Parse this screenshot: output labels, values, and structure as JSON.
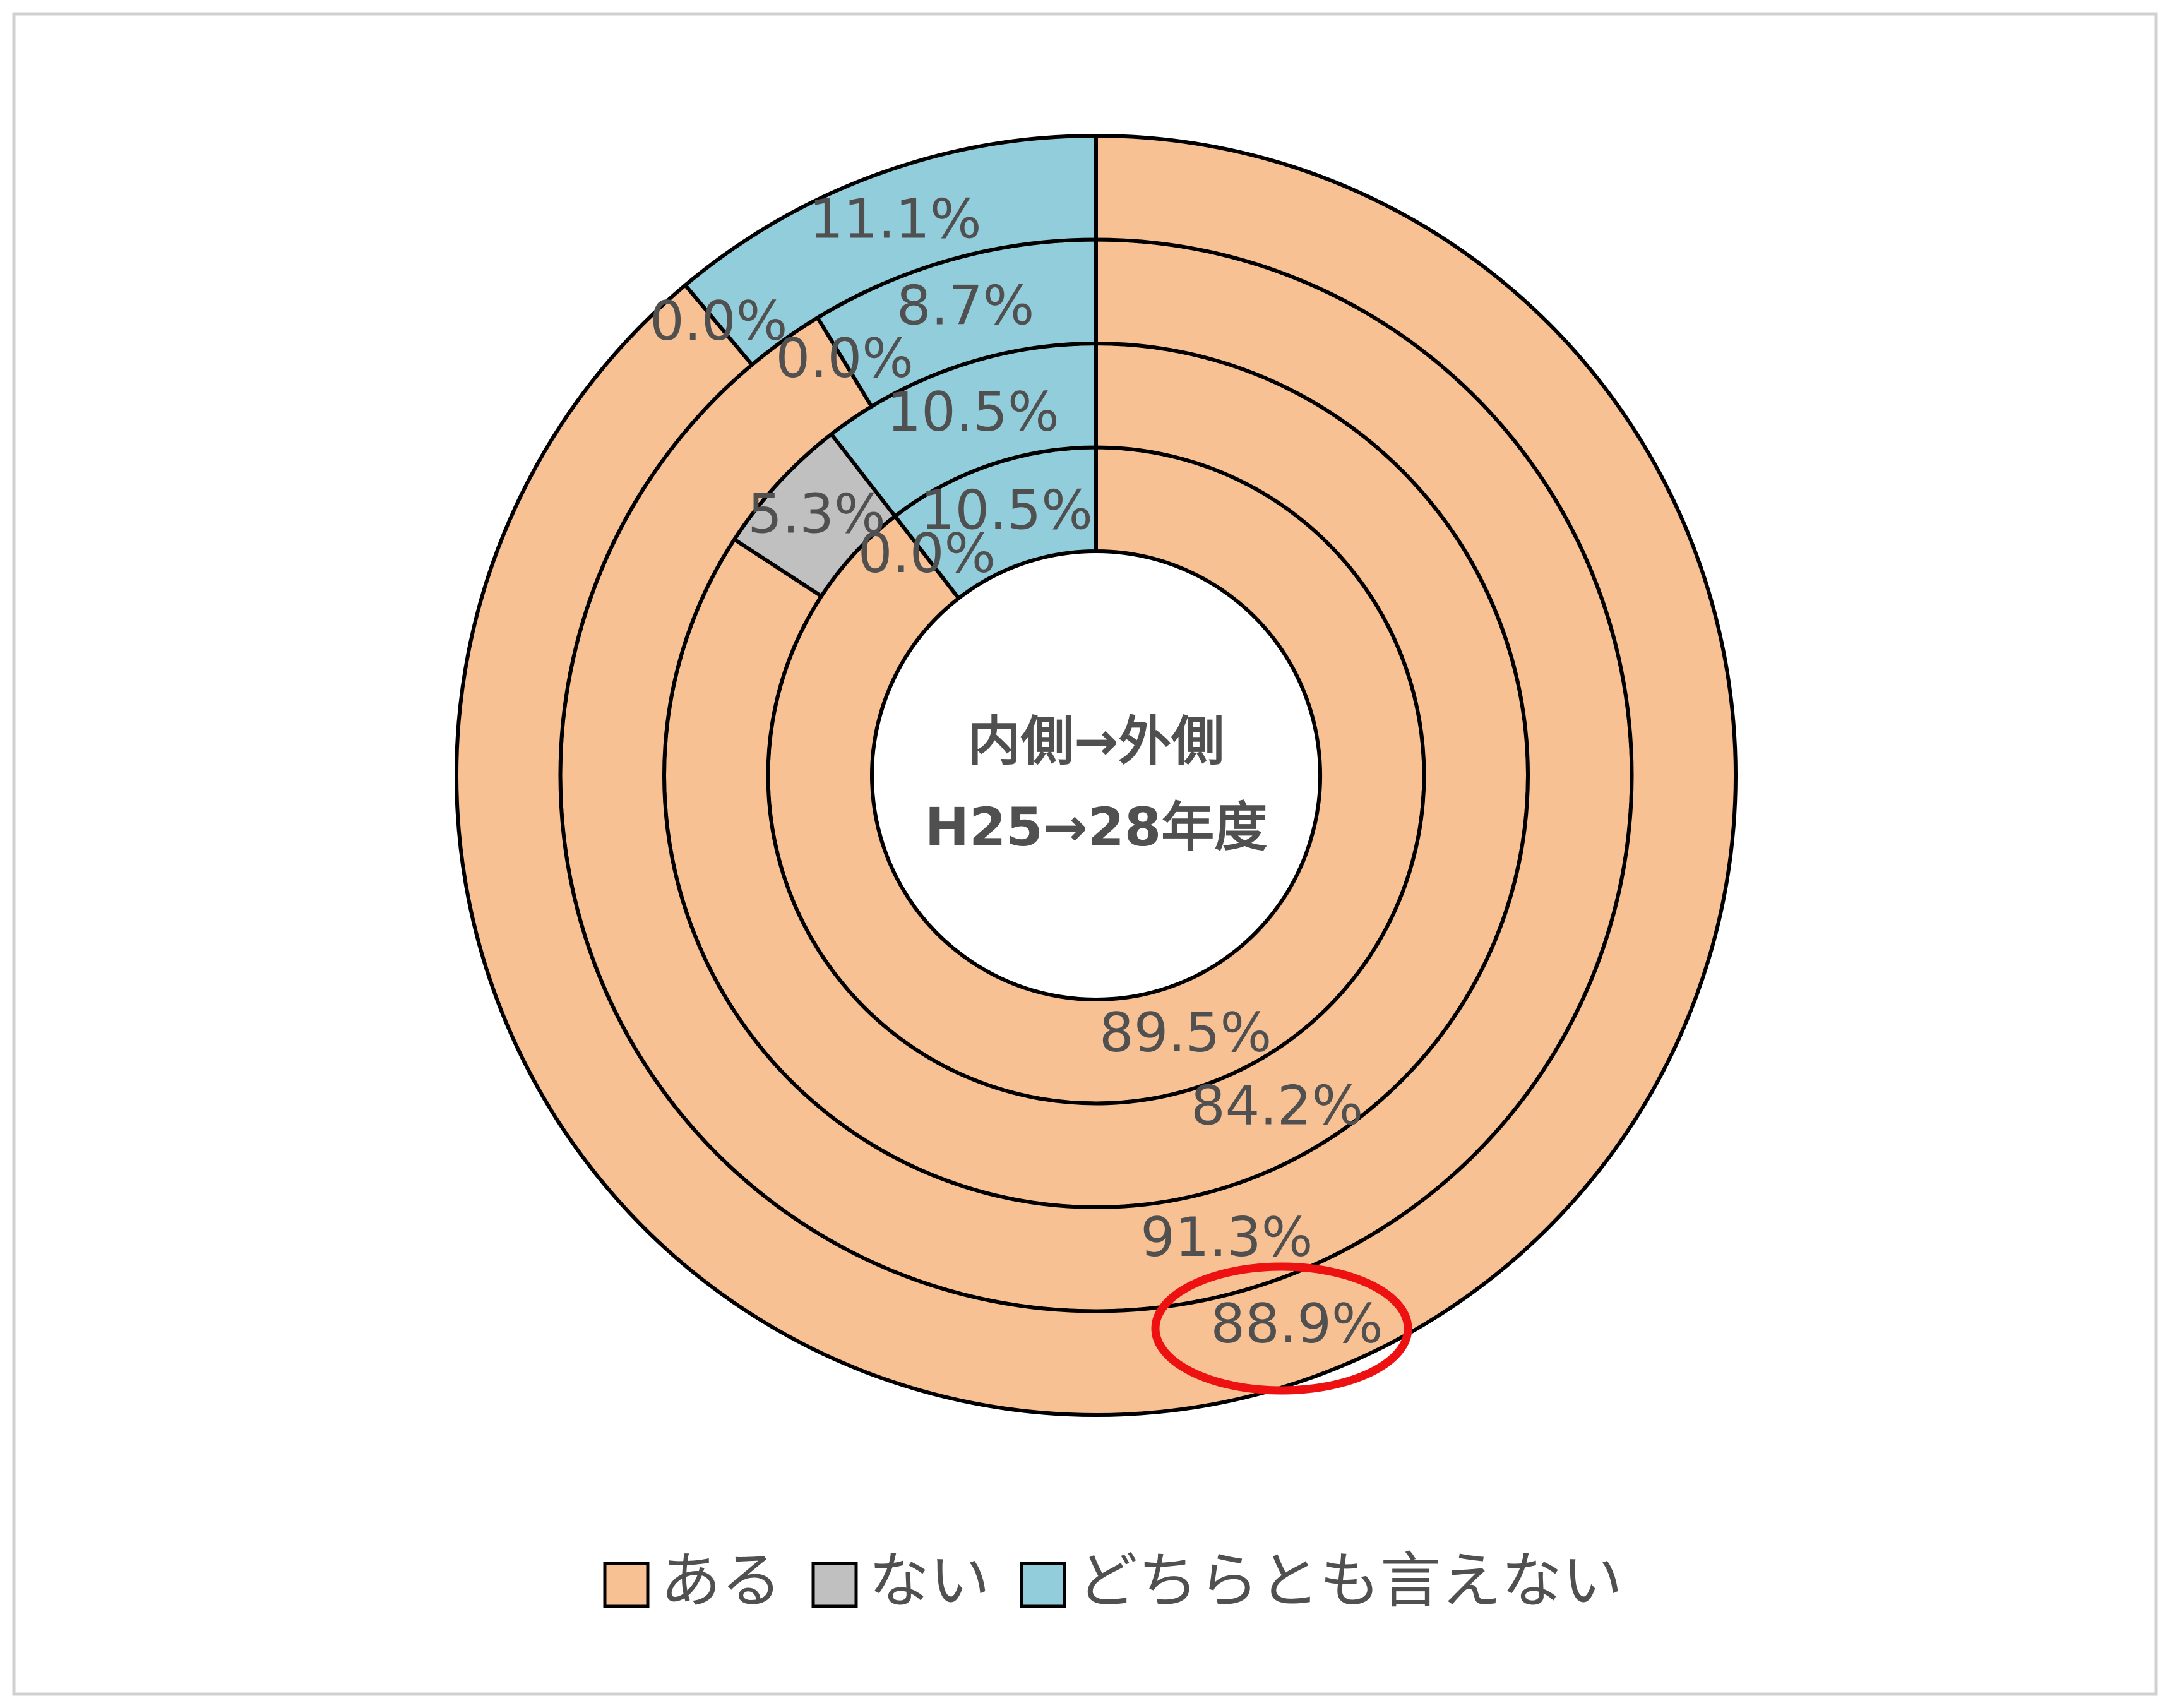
{
  "chart_data": {
    "type": "multi-donut",
    "center_text": [
      "内側→外側",
      "H25→28年度"
    ],
    "categories": [
      "ある",
      "ない",
      "どちらとも言えない"
    ],
    "colors": [
      "#f8c193",
      "#c0c0c0",
      "#92cddc"
    ],
    "rings": [
      {
        "values": [
          89.5,
          0.0,
          10.5
        ],
        "value_labels": [
          "89.5%",
          "0.0%",
          "10.5%"
        ]
      },
      {
        "values": [
          84.2,
          5.3,
          10.5
        ],
        "value_labels": [
          "84.2%",
          "5.3%",
          "10.5%"
        ]
      },
      {
        "values": [
          91.3,
          0.0,
          8.7
        ],
        "value_labels": [
          "91.3%",
          "0.0%",
          "8.7%"
        ]
      },
      {
        "values": [
          88.9,
          0.0,
          11.1
        ],
        "value_labels": [
          "88.9%",
          "0.0%",
          "11.1%"
        ]
      }
    ]
  }
}
